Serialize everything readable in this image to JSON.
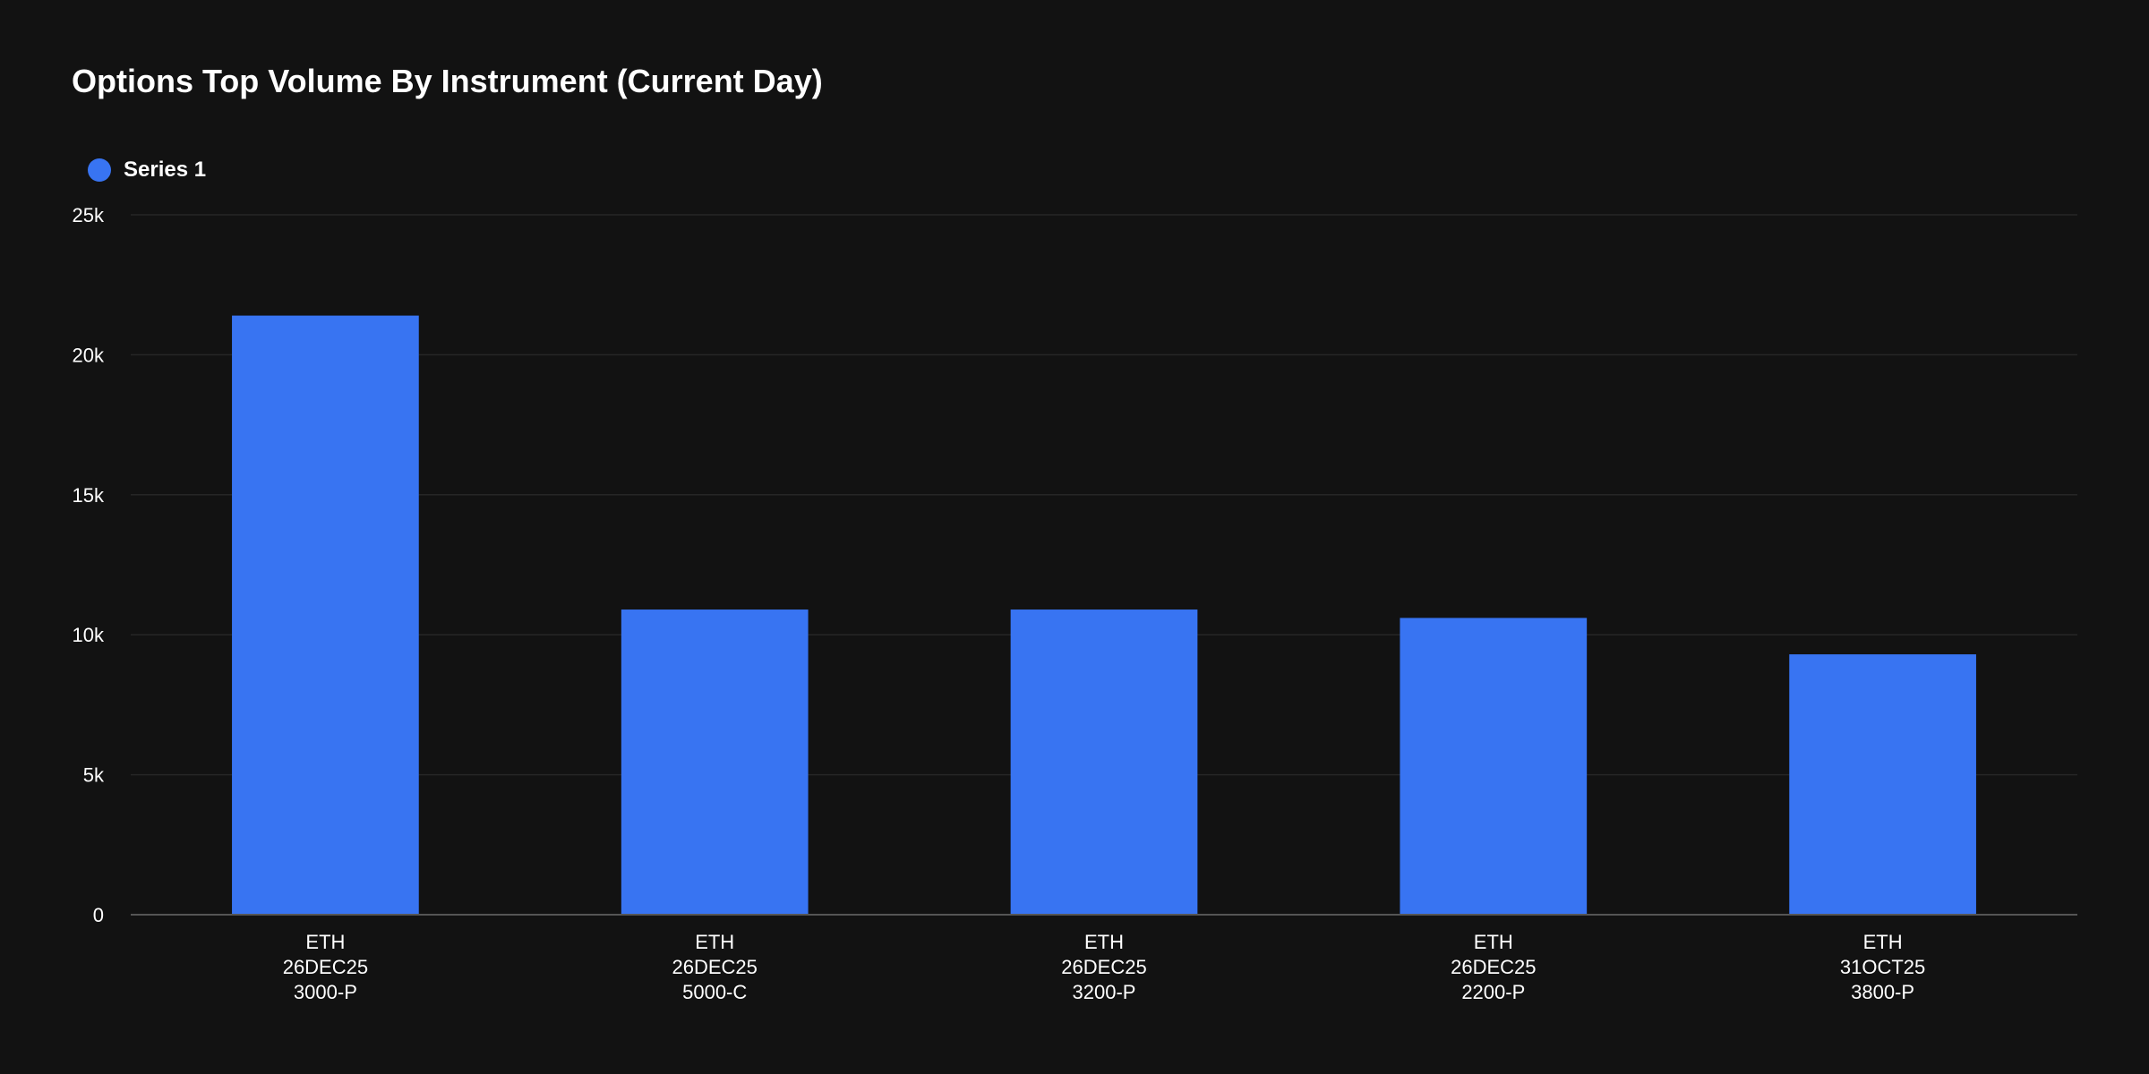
{
  "chart_data": {
    "type": "bar",
    "title": "Options Top Volume By Instrument (Current Day)",
    "categories": [
      [
        "ETH",
        "26DEC25",
        "3000-P"
      ],
      [
        "ETH",
        "26DEC25",
        "5000-C"
      ],
      [
        "ETH",
        "26DEC25",
        "3200-P"
      ],
      [
        "ETH",
        "26DEC25",
        "2200-P"
      ],
      [
        "ETH",
        "31OCT25",
        "3800-P"
      ]
    ],
    "series": [
      {
        "name": "Series 1",
        "values": [
          21400,
          10900,
          10900,
          10600,
          9300
        ]
      }
    ],
    "ylim": [
      0,
      25000
    ],
    "yticks": [
      0,
      5000,
      10000,
      15000,
      20000,
      25000
    ],
    "ytick_labels": [
      "0",
      "5k",
      "10k",
      "15k",
      "20k",
      "25k"
    ],
    "xlabel": "",
    "ylabel": "",
    "grid": true,
    "legend": "top-left"
  },
  "colors": {
    "background": "#121212",
    "bar": "#3874f2",
    "grid": "#262626",
    "axis": "#555555",
    "text": "#ffffff"
  }
}
